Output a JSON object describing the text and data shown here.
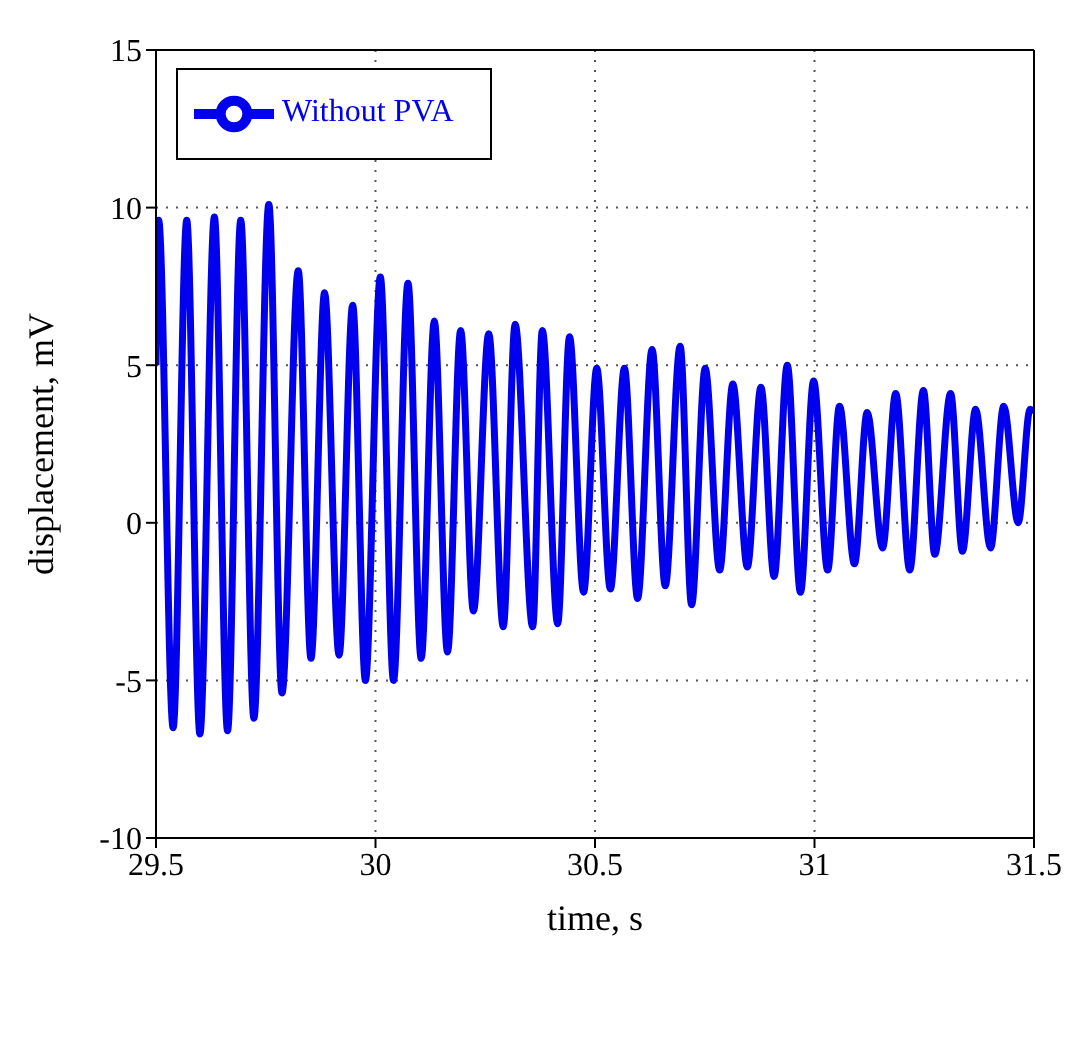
{
  "chart_data": {
    "type": "line",
    "xlabel": "time, s",
    "ylabel": "displacement, mV",
    "xlim": [
      29.5,
      31.5
    ],
    "xticks": [
      29.5,
      30,
      30.5,
      31,
      31.5
    ],
    "ylim": [
      -10,
      15
    ],
    "yticks": [
      -10,
      -5,
      0,
      5,
      10,
      15
    ],
    "grid": true,
    "legend": "top left",
    "marker": "none",
    "line_style": "solid",
    "series": [
      {
        "name": "Without PVA",
        "color": "#0000ee",
        "x": [
          29.5,
          29.506,
          29.539,
          29.57,
          29.6,
          29.633,
          29.663,
          29.693,
          29.723,
          29.757,
          29.787,
          29.824,
          29.853,
          29.884,
          29.917,
          29.948,
          29.977,
          30.011,
          30.041,
          30.074,
          30.104,
          30.134,
          30.164,
          30.194,
          30.223,
          30.258,
          30.291,
          30.318,
          30.358,
          30.38,
          30.415,
          30.442,
          30.474,
          30.504,
          30.535,
          30.567,
          30.597,
          30.63,
          30.66,
          30.694,
          30.72,
          30.751,
          30.784,
          30.814,
          30.847,
          30.878,
          30.908,
          30.938,
          30.968,
          30.998,
          31.03,
          31.057,
          31.091,
          31.12,
          31.155,
          31.185,
          31.217,
          31.248,
          31.274,
          31.31,
          31.337,
          31.367,
          31.401,
          31.431,
          31.464,
          31.491,
          31.5
        ],
        "values": [
          5,
          9.6,
          -6.5,
          9.6,
          -6.7,
          9.7,
          -6.6,
          9.6,
          -6.2,
          10.1,
          -5.4,
          8,
          -4.3,
          7.3,
          -4.2,
          6.9,
          -5,
          7.8,
          -5,
          7.6,
          -4.3,
          6.4,
          -4.1,
          6.1,
          -2.8,
          6,
          -3.3,
          6.3,
          -3.3,
          6.1,
          -3.2,
          5.9,
          -2.2,
          4.9,
          -2.1,
          4.9,
          -2.4,
          5.5,
          -2,
          5.6,
          -2.6,
          4.9,
          -1.5,
          4.4,
          -1.4,
          4.3,
          -1.7,
          5,
          -2.2,
          4.5,
          -1.5,
          3.7,
          -1.3,
          3.5,
          -0.8,
          4.1,
          -1.5,
          4.2,
          -1,
          4.1,
          -0.9,
          3.6,
          -0.8,
          3.7,
          0,
          3.6,
          3.5
        ]
      }
    ]
  }
}
